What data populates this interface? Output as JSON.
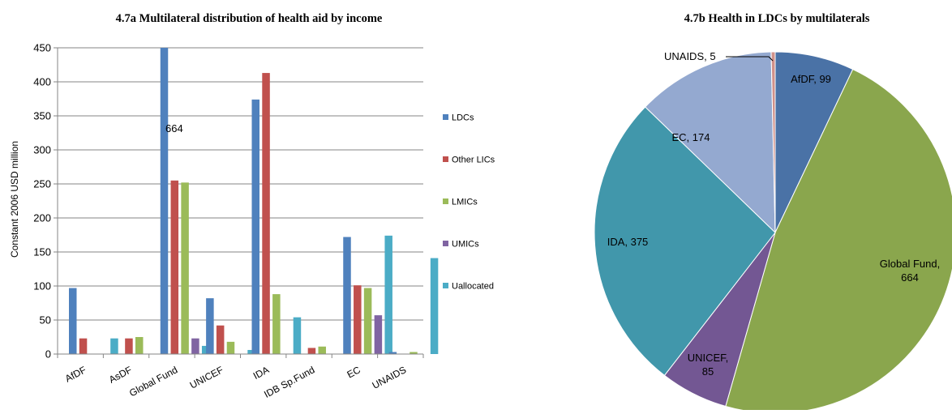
{
  "chart_data": [
    {
      "type": "bar",
      "title": "4.7a Multilateral distribution of health aid by income",
      "xlabel": "",
      "ylabel": "Constant 2006 USD million",
      "ylim": [
        0,
        450
      ],
      "yticks": [
        "0",
        "50",
        "100",
        "150",
        "200",
        "250",
        "300",
        "350",
        "400",
        "450"
      ],
      "categories": [
        "AfDF",
        "AsDF",
        "Global Fund",
        "UNICEF",
        "IDA",
        "IDB Sp.Fund",
        "EC",
        "UNAIDS"
      ],
      "series": [
        {
          "name": "LDCs",
          "color": "#4f81bd",
          "values": [
            97,
            0,
            450,
            82,
            374,
            0,
            172,
            3
          ]
        },
        {
          "name": "Other LICs",
          "color": "#c0504d",
          "values": [
            23,
            23,
            255,
            42,
            413,
            9,
            101,
            0
          ]
        },
        {
          "name": "LMICs",
          "color": "#9bbb59",
          "values": [
            0,
            25,
            252,
            18,
            88,
            11,
            97,
            3
          ]
        },
        {
          "name": "UMICs",
          "color": "#8064a2",
          "values": [
            0,
            0,
            23,
            0,
            0,
            0,
            57,
            0
          ]
        },
        {
          "name": "Uallocated",
          "color": "#4bacc6",
          "values": [
            23,
            0,
            12,
            6,
            54,
            0,
            174,
            141
          ]
        }
      ],
      "annotations": [
        "664"
      ],
      "grid": true,
      "legend": "right"
    },
    {
      "type": "pie",
      "title": "4.7b Health in LDCs by multilaterals",
      "slices": [
        {
          "label": "AfDF, 99",
          "value": 99,
          "color": "#4a72a6"
        },
        {
          "label": "Global Fund, 664",
          "value": 664,
          "color": "#8aa64d"
        },
        {
          "label": "UNICEF, 85",
          "value": 85,
          "color": "#735793"
        },
        {
          "label": "IDA, 375",
          "value": 375,
          "color": "#4197ab"
        },
        {
          "label": "EC, 174",
          "value": 174,
          "color": "#94a9d0"
        },
        {
          "label": "UNAIDS, 5",
          "value": 5,
          "color": "#d0918a"
        }
      ],
      "start": "top, clockwise"
    }
  ]
}
